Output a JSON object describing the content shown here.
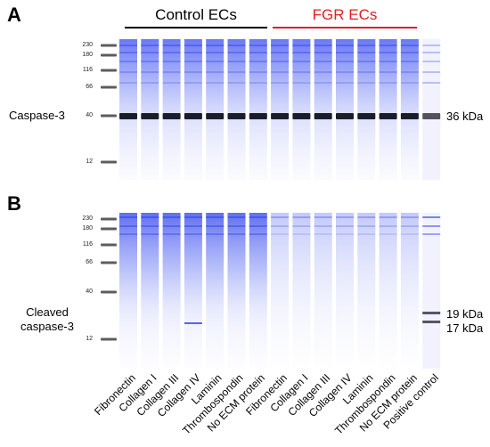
{
  "panels": [
    {
      "letter": "A",
      "row_label": "Caspase-3",
      "kda_labels": [
        "36 kDa"
      ],
      "mw_markers": [
        "230",
        "180",
        "116",
        "66",
        "40",
        "12"
      ]
    },
    {
      "letter": "B",
      "row_label_line1": "Cleaved",
      "row_label_line2": "caspase-3",
      "kda_labels": [
        "19 kDa",
        "17 kDa"
      ],
      "mw_markers": [
        "230",
        "180",
        "116",
        "66",
        "40",
        "12"
      ]
    }
  ],
  "groups": [
    {
      "title": "Control ECs",
      "color": "#000000"
    },
    {
      "title": "FGR ECs",
      "color": "#e02020"
    }
  ],
  "lanes": [
    "Fibronectin",
    "Collagen I",
    "Collagen III",
    "Collagen IV",
    "Laminin",
    "Thrombospondin",
    "No ECM protein",
    "Fibronectin",
    "Collagen I",
    "Collagen III",
    "Collagen IV",
    "Laminin",
    "Thrombospondin",
    "No ECM protein",
    "Positive control"
  ],
  "colors": {
    "lane_blue": "#4b5cf0",
    "band_dark": "#1a1a24",
    "fgr_red": "#e02020"
  }
}
